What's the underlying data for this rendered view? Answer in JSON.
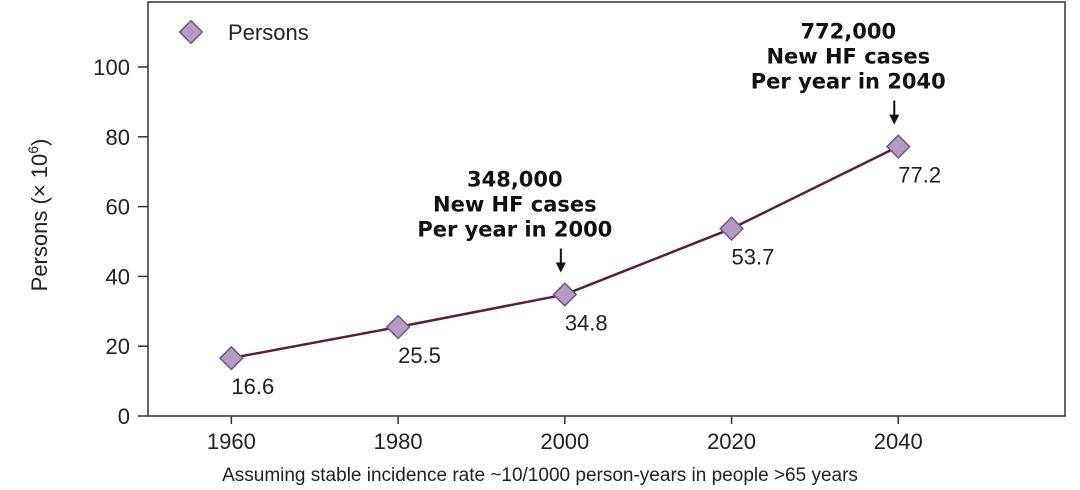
{
  "chart_data": {
    "type": "line",
    "x": [
      1960,
      1980,
      2000,
      2020,
      2040
    ],
    "series": [
      {
        "name": "Persons",
        "values": [
          16.6,
          25.5,
          34.8,
          53.7,
          77.2
        ]
      }
    ],
    "data_labels": [
      "16.6",
      "25.5",
      "34.8",
      "53.7",
      "77.2"
    ],
    "ylabel_main": "Persons (",
    "ylabel_x": "× 10",
    "ylabel_exp": "6",
    "ylabel_close": ")",
    "xlabel": "Assuming stable incidence rate ~10/1000 person-years in people >65 years",
    "ylim": [
      0,
      110
    ],
    "yticks": [
      0,
      20,
      40,
      60,
      80,
      100
    ],
    "xlim": [
      1950,
      2060
    ],
    "xticks": [
      1960,
      1980,
      2000,
      2020,
      2040
    ],
    "legend_position": "top-left",
    "annotations": [
      {
        "x": 2000,
        "lines": [
          "348,000",
          "New HF cases",
          "Per year in 2000"
        ]
      },
      {
        "x": 2040,
        "lines": [
          "772,000",
          "New HF cases",
          "Per year in 2040"
        ]
      }
    ],
    "colors": {
      "line": "#5a1f3a",
      "marker_fill": "#b49ac4",
      "marker_stroke": "#6e5a80"
    }
  }
}
